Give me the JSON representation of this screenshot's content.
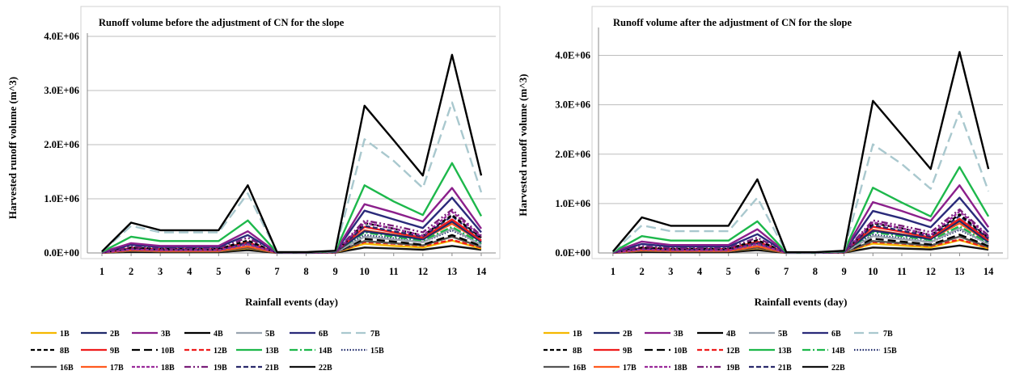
{
  "chart_data": [
    {
      "type": "line",
      "title": "Runoff volume before the adjustment of CN for the slope",
      "xlabel": "Rainfall events (day)",
      "ylabel": "Harvested runoff volume  (m^3)",
      "x": [
        1,
        2,
        3,
        4,
        5,
        6,
        7,
        8,
        9,
        10,
        11,
        12,
        13,
        14
      ],
      "ylim": [
        0,
        4000000
      ],
      "yticks": [
        0,
        1000000,
        2000000,
        3000000,
        4000000
      ],
      "ytick_labels": [
        "0.0E+00",
        "1.0E+06",
        "2.0E+06",
        "3.0E+06",
        "4.0E+06"
      ],
      "grid": true,
      "legend_position": "bottom",
      "series": [
        {
          "name": "1B",
          "color": "#f5b800",
          "dash": "",
          "values": [
            5000,
            40000,
            30000,
            30000,
            30000,
            90000,
            3000,
            3000,
            8000,
            170000,
            130000,
            100000,
            230000,
            80000
          ]
        },
        {
          "name": "2B",
          "color": "#1f2a6b",
          "dash": "",
          "values": [
            8000,
            80000,
            60000,
            60000,
            60000,
            180000,
            5000,
            5000,
            15000,
            400000,
            330000,
            250000,
            580000,
            200000
          ]
        },
        {
          "name": "3B",
          "color": "#8b1f8b",
          "dash": "",
          "values": [
            15000,
            180000,
            130000,
            130000,
            130000,
            400000,
            8000,
            8000,
            25000,
            900000,
            750000,
            580000,
            1200000,
            450000
          ]
        },
        {
          "name": "4B",
          "color": "#000000",
          "dash": "",
          "values": [
            25000,
            560000,
            420000,
            420000,
            420000,
            1250000,
            15000,
            15000,
            40000,
            2720000,
            2080000,
            1430000,
            3660000,
            1430000
          ]
        },
        {
          "name": "5B",
          "color": "#9aa4b0",
          "dash": "",
          "values": [
            6000,
            60000,
            45000,
            45000,
            45000,
            130000,
            4000,
            4000,
            10000,
            300000,
            250000,
            200000,
            450000,
            150000
          ]
        },
        {
          "name": "6B",
          "color": "#2a2a7a",
          "dash": "",
          "values": [
            12000,
            150000,
            110000,
            110000,
            110000,
            330000,
            6000,
            6000,
            20000,
            780000,
            620000,
            460000,
            1020000,
            380000
          ]
        },
        {
          "name": "7B",
          "color": "#a9c8ce",
          "dash": "12 6",
          "values": [
            22000,
            500000,
            380000,
            380000,
            380000,
            1100000,
            12000,
            12000,
            35000,
            2100000,
            1700000,
            1200000,
            2780000,
            1120000
          ]
        },
        {
          "name": "8B",
          "color": "#000000",
          "dash": "5 3",
          "values": [
            8000,
            100000,
            75000,
            75000,
            75000,
            230000,
            5000,
            5000,
            15000,
            550000,
            450000,
            320000,
            700000,
            280000
          ]
        },
        {
          "name": "9B",
          "color": "#ee1c1c",
          "dash": "",
          "values": [
            7000,
            90000,
            70000,
            70000,
            70000,
            200000,
            5000,
            5000,
            14000,
            480000,
            380000,
            280000,
            620000,
            230000
          ]
        },
        {
          "name": "10B",
          "color": "#000000",
          "dash": "10 5",
          "values": [
            5000,
            50000,
            40000,
            40000,
            40000,
            120000,
            3000,
            3000,
            9000,
            260000,
            210000,
            150000,
            330000,
            130000
          ]
        },
        {
          "name": "12B",
          "color": "#ee1c1c",
          "dash": "6 3",
          "values": [
            4000,
            45000,
            35000,
            35000,
            35000,
            100000,
            3000,
            3000,
            8000,
            200000,
            170000,
            130000,
            240000,
            100000
          ]
        },
        {
          "name": "13B",
          "color": "#1db84b",
          "dash": "",
          "values": [
            18000,
            300000,
            220000,
            220000,
            220000,
            600000,
            10000,
            10000,
            30000,
            1250000,
            950000,
            700000,
            1660000,
            680000
          ]
        },
        {
          "name": "14B",
          "color": "#1db84b",
          "dash": "10 3 2 3",
          "values": [
            7000,
            70000,
            55000,
            55000,
            55000,
            170000,
            4000,
            4000,
            12000,
            380000,
            300000,
            230000,
            480000,
            180000
          ]
        },
        {
          "name": "15B",
          "color": "#1f2a6b",
          "dash": "1.5 2",
          "values": [
            6000,
            55000,
            42000,
            42000,
            42000,
            140000,
            4000,
            4000,
            11000,
            330000,
            270000,
            200000,
            420000,
            160000
          ]
        },
        {
          "name": "16B",
          "color": "#555555",
          "dash": "",
          "values": [
            5000,
            40000,
            30000,
            30000,
            30000,
            100000,
            3000,
            3000,
            8000,
            220000,
            180000,
            140000,
            300000,
            110000
          ]
        },
        {
          "name": "17B",
          "color": "#ff5a1f",
          "dash": "",
          "values": [
            5000,
            50000,
            38000,
            38000,
            38000,
            120000,
            3000,
            3000,
            9000,
            420000,
            340000,
            260000,
            540000,
            210000
          ]
        },
        {
          "name": "18B",
          "color": "#9b2a9b",
          "dash": "4 2",
          "values": [
            6000,
            65000,
            50000,
            50000,
            50000,
            160000,
            4000,
            4000,
            11000,
            560000,
            450000,
            320000,
            760000,
            300000
          ]
        },
        {
          "name": "19B",
          "color": "#7a1f7a",
          "dash": "8 3 2 3 2 3",
          "values": [
            9000,
            120000,
            90000,
            90000,
            90000,
            280000,
            5000,
            5000,
            16000,
            600000,
            500000,
            380000,
            800000,
            320000
          ]
        },
        {
          "name": "21B",
          "color": "#2a2a6b",
          "dash": "6 3",
          "values": [
            7000,
            75000,
            58000,
            58000,
            58000,
            190000,
            4000,
            4000,
            12000,
            500000,
            400000,
            300000,
            680000,
            260000
          ]
        },
        {
          "name": "22B",
          "color": "#111111",
          "dash": "",
          "values": [
            3000,
            20000,
            15000,
            15000,
            15000,
            50000,
            2000,
            2000,
            5000,
            100000,
            80000,
            60000,
            130000,
            60000
          ]
        }
      ]
    },
    {
      "type": "line",
      "title": "Runoff volume after the adjustment of CN for the slope",
      "xlabel": "Rainfall events (day)",
      "ylabel": "Harvested runoff volume  (m^3)",
      "x": [
        1,
        2,
        3,
        4,
        5,
        6,
        7,
        8,
        9,
        10,
        11,
        12,
        13,
        14
      ],
      "ylim": [
        0,
        4500000
      ],
      "yticks": [
        0,
        1000000,
        2000000,
        3000000,
        4000000
      ],
      "ytick_labels": [
        "0.0E+00",
        "1.0E+06",
        "2.0E+06",
        "3.0E+06",
        "4.0E+06"
      ],
      "grid": true,
      "legend_position": "bottom",
      "series": [
        {
          "name": "1B",
          "color": "#f5b800",
          "dash": "",
          "values": [
            5000,
            45000,
            35000,
            35000,
            35000,
            100000,
            3000,
            3000,
            9000,
            190000,
            150000,
            110000,
            260000,
            90000
          ]
        },
        {
          "name": "2B",
          "color": "#1f2a6b",
          "dash": "",
          "values": [
            9000,
            90000,
            70000,
            70000,
            70000,
            200000,
            5000,
            5000,
            16000,
            450000,
            370000,
            280000,
            650000,
            220000
          ]
        },
        {
          "name": "3B",
          "color": "#8b1f8b",
          "dash": "",
          "values": [
            18000,
            230000,
            160000,
            160000,
            160000,
            480000,
            8000,
            8000,
            28000,
            1030000,
            850000,
            650000,
            1370000,
            520000
          ]
        },
        {
          "name": "4B",
          "color": "#000000",
          "dash": "",
          "values": [
            30000,
            720000,
            550000,
            550000,
            550000,
            1490000,
            15000,
            15000,
            45000,
            3080000,
            2390000,
            1700000,
            4070000,
            1700000
          ]
        },
        {
          "name": "5B",
          "color": "#9aa4b0",
          "dash": "",
          "values": [
            7000,
            70000,
            52000,
            52000,
            52000,
            150000,
            4000,
            4000,
            11000,
            340000,
            280000,
            220000,
            500000,
            170000
          ]
        },
        {
          "name": "6B",
          "color": "#2a2a7a",
          "dash": "",
          "values": [
            14000,
            180000,
            130000,
            130000,
            130000,
            380000,
            6000,
            6000,
            22000,
            850000,
            700000,
            520000,
            1120000,
            420000
          ]
        },
        {
          "name": "7B",
          "color": "#a9c8ce",
          "dash": "12 6",
          "values": [
            25000,
            560000,
            440000,
            440000,
            440000,
            1120000,
            12000,
            12000,
            40000,
            2200000,
            1800000,
            1300000,
            2860000,
            1250000
          ]
        },
        {
          "name": "8B",
          "color": "#000000",
          "dash": "5 3",
          "values": [
            9000,
            110000,
            85000,
            85000,
            85000,
            260000,
            5000,
            5000,
            16000,
            600000,
            500000,
            360000,
            780000,
            310000
          ]
        },
        {
          "name": "9B",
          "color": "#ee1c1c",
          "dash": "",
          "values": [
            8000,
            100000,
            78000,
            78000,
            78000,
            230000,
            5000,
            5000,
            15000,
            530000,
            430000,
            310000,
            690000,
            260000
          ]
        },
        {
          "name": "10B",
          "color": "#000000",
          "dash": "10 5",
          "values": [
            6000,
            55000,
            44000,
            44000,
            44000,
            130000,
            3000,
            3000,
            10000,
            290000,
            230000,
            170000,
            370000,
            140000
          ]
        },
        {
          "name": "12B",
          "color": "#ee1c1c",
          "dash": "6 3",
          "values": [
            5000,
            50000,
            38000,
            38000,
            38000,
            110000,
            3000,
            3000,
            9000,
            220000,
            190000,
            140000,
            270000,
            110000
          ]
        },
        {
          "name": "13B",
          "color": "#1db84b",
          "dash": "",
          "values": [
            20000,
            340000,
            250000,
            250000,
            250000,
            640000,
            10000,
            10000,
            32000,
            1320000,
            1020000,
            740000,
            1740000,
            740000
          ]
        },
        {
          "name": "14B",
          "color": "#1db84b",
          "dash": "10 3 2 3",
          "values": [
            8000,
            80000,
            60000,
            60000,
            60000,
            190000,
            4000,
            4000,
            13000,
            420000,
            340000,
            260000,
            540000,
            200000
          ]
        },
        {
          "name": "15B",
          "color": "#1f2a6b",
          "dash": "1.5 2",
          "values": [
            7000,
            60000,
            47000,
            47000,
            47000,
            160000,
            4000,
            4000,
            12000,
            370000,
            300000,
            220000,
            470000,
            180000
          ]
        },
        {
          "name": "16B",
          "color": "#555555",
          "dash": "",
          "values": [
            5000,
            45000,
            34000,
            34000,
            34000,
            110000,
            3000,
            3000,
            9000,
            240000,
            200000,
            150000,
            330000,
            120000
          ]
        },
        {
          "name": "17B",
          "color": "#ff5a1f",
          "dash": "",
          "values": [
            6000,
            55000,
            42000,
            42000,
            42000,
            135000,
            3000,
            3000,
            10000,
            470000,
            380000,
            290000,
            600000,
            230000
          ]
        },
        {
          "name": "18B",
          "color": "#9b2a9b",
          "dash": "4 2",
          "values": [
            7000,
            72000,
            56000,
            56000,
            56000,
            180000,
            4000,
            4000,
            12000,
            620000,
            500000,
            360000,
            840000,
            330000
          ]
        },
        {
          "name": "19B",
          "color": "#7a1f7a",
          "dash": "8 3 2 3 2 3",
          "values": [
            10000,
            135000,
            100000,
            100000,
            100000,
            310000,
            5000,
            5000,
            18000,
            660000,
            550000,
            420000,
            880000,
            350000
          ]
        },
        {
          "name": "21B",
          "color": "#2a2a6b",
          "dash": "6 3",
          "values": [
            8000,
            85000,
            65000,
            65000,
            65000,
            210000,
            4000,
            4000,
            13000,
            560000,
            450000,
            330000,
            750000,
            290000
          ]
        },
        {
          "name": "22B",
          "color": "#111111",
          "dash": "",
          "values": [
            3000,
            22000,
            17000,
            17000,
            17000,
            55000,
            2000,
            2000,
            6000,
            110000,
            90000,
            70000,
            150000,
            65000
          ]
        }
      ]
    }
  ]
}
